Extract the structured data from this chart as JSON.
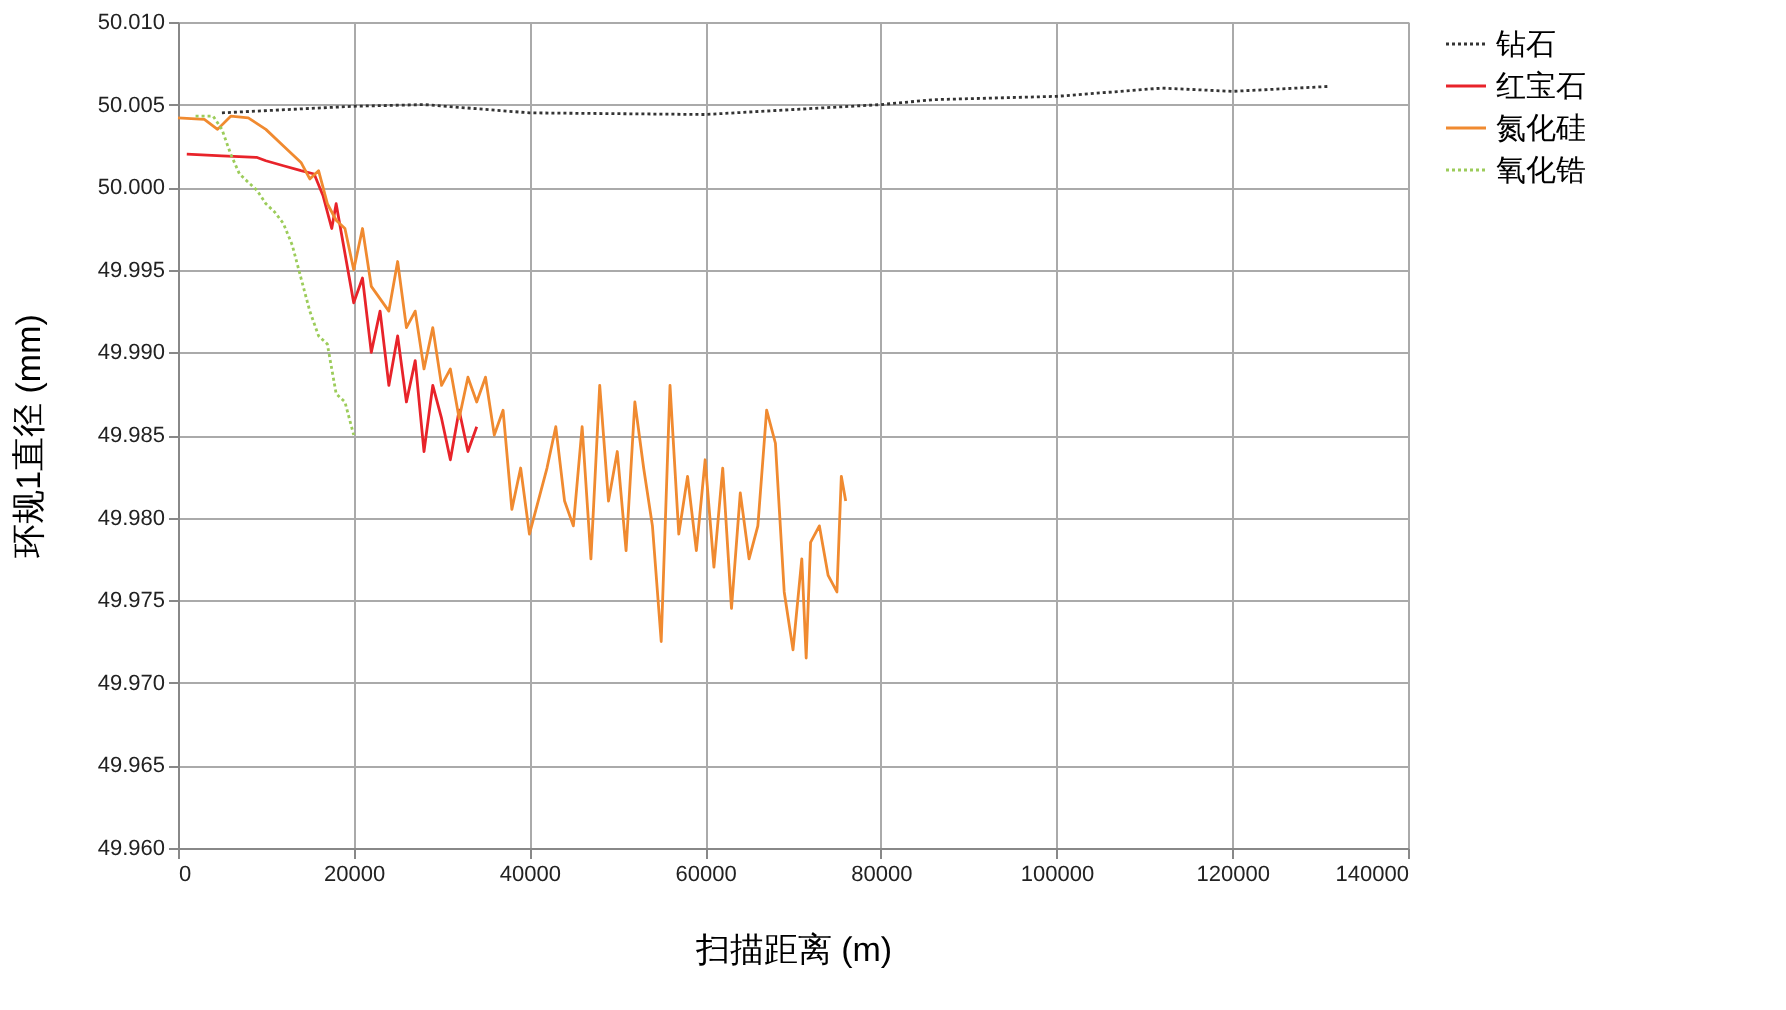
{
  "chart_data": {
    "type": "line",
    "xlabel": "扫描距离 (m)",
    "ylabel": "环规1直径 (mm)",
    "xlim": [
      0,
      140000
    ],
    "xticks": [
      {
        "value": 0,
        "label": "0"
      },
      {
        "value": 20000,
        "label": "20000"
      },
      {
        "value": 40000,
        "label": "40000"
      },
      {
        "value": 60000,
        "label": "60000"
      },
      {
        "value": 80000,
        "label": "80000"
      },
      {
        "value": 100000,
        "label": "100000"
      },
      {
        "value": 120000,
        "label": "120000"
      },
      {
        "value": 140000,
        "label": "140000"
      }
    ],
    "ylim": [
      49.96,
      50.01
    ],
    "yticks": [
      {
        "value": 49.96,
        "label": "49.960"
      },
      {
        "value": 49.965,
        "label": "49.965"
      },
      {
        "value": 49.97,
        "label": "49.970"
      },
      {
        "value": 49.975,
        "label": "49.975"
      },
      {
        "value": 49.98,
        "label": "49.980"
      },
      {
        "value": 49.985,
        "label": "49.985"
      },
      {
        "value": 49.99,
        "label": "49.990"
      },
      {
        "value": 49.995,
        "label": "49.995"
      },
      {
        "value": 50.0,
        "label": "50.000"
      },
      {
        "value": 50.005,
        "label": "50.005"
      },
      {
        "value": 50.01,
        "label": "50.010"
      }
    ],
    "grid": true,
    "legend": "right",
    "marker": "none",
    "series": [
      {
        "name": "钻石",
        "color": "#333333",
        "line_style": "dotted",
        "x": [
          5000,
          20000,
          28000,
          40000,
          60000,
          80000,
          86000,
          100000,
          112000,
          120000,
          131000
        ],
        "values": [
          50.0045,
          50.0049,
          50.005,
          50.0045,
          50.0044,
          50.005,
          50.0053,
          50.0055,
          50.006,
          50.0058,
          50.0061
        ]
      },
      {
        "name": "红宝石",
        "color": "#e8232a",
        "line_style": "solid",
        "x": [
          1000,
          5000,
          9000,
          10000,
          12000,
          14000,
          15500,
          16500,
          17500,
          18000,
          19000,
          20000,
          21000,
          22000,
          23000,
          24000,
          25000,
          26000,
          27000,
          28000,
          29000,
          30000,
          31000,
          32000,
          33000,
          34000
        ],
        "values": [
          50.002,
          50.0019,
          50.0018,
          50.0016,
          50.0013,
          50.001,
          50.0008,
          49.9995,
          49.9975,
          49.999,
          49.996,
          49.993,
          49.9945,
          49.99,
          49.9925,
          49.988,
          49.991,
          49.987,
          49.9895,
          49.984,
          49.988,
          49.986,
          49.9835,
          49.9865,
          49.984,
          49.9855
        ]
      },
      {
        "name": "氮化硅",
        "color": "#f08a30",
        "line_style": "solid",
        "x": [
          0,
          3000,
          4500,
          6000,
          8000,
          10000,
          12000,
          14000,
          15000,
          16000,
          17000,
          18000,
          19000,
          20000,
          21000,
          22000,
          24000,
          25000,
          26000,
          27000,
          28000,
          29000,
          30000,
          31000,
          32000,
          33000,
          34000,
          35000,
          36000,
          37000,
          38000,
          39000,
          40000,
          42000,
          43000,
          44000,
          45000,
          46000,
          47000,
          48000,
          49000,
          50000,
          51000,
          52000,
          53000,
          54000,
          55000,
          56000,
          57000,
          58000,
          59000,
          60000,
          61000,
          62000,
          63000,
          64000,
          65000,
          66000,
          67000,
          68000,
          69000,
          70000,
          71000,
          71500,
          72000,
          73000,
          74000,
          75000,
          75500,
          76000
        ],
        "values": [
          50.0042,
          50.0041,
          50.0035,
          50.0043,
          50.0042,
          50.0035,
          50.0025,
          50.0015,
          50.0005,
          50.001,
          49.999,
          49.998,
          49.9975,
          49.995,
          49.9975,
          49.994,
          49.9925,
          49.9955,
          49.9915,
          49.9925,
          49.989,
          49.9915,
          49.988,
          49.989,
          49.986,
          49.9885,
          49.987,
          49.9885,
          49.985,
          49.9865,
          49.9805,
          49.983,
          49.979,
          49.983,
          49.9855,
          49.981,
          49.9795,
          49.9855,
          49.9775,
          49.988,
          49.981,
          49.984,
          49.978,
          49.987,
          49.983,
          49.9795,
          49.9725,
          49.988,
          49.979,
          49.9825,
          49.978,
          49.9835,
          49.977,
          49.983,
          49.9745,
          49.9815,
          49.9775,
          49.9795,
          49.9865,
          49.9845,
          49.9755,
          49.972,
          49.9775,
          49.9715,
          49.9785,
          49.9795,
          49.9765,
          49.9755,
          49.9825,
          49.981
        ]
      },
      {
        "name": "氧化锆",
        "color": "#9ccc5a",
        "line_style": "dotted",
        "x": [
          2000,
          4000,
          5000,
          6000,
          7000,
          8000,
          9000,
          10000,
          11000,
          12000,
          13000,
          14000,
          15000,
          16000,
          17000,
          18000,
          19000,
          20000
        ],
        "values": [
          50.0043,
          50.0043,
          50.0035,
          50.002,
          50.0008,
          50.0003,
          49.9998,
          49.999,
          49.9985,
          49.9978,
          49.9965,
          49.9945,
          49.9925,
          49.991,
          49.9905,
          49.9875,
          49.987,
          49.985
        ]
      }
    ]
  }
}
